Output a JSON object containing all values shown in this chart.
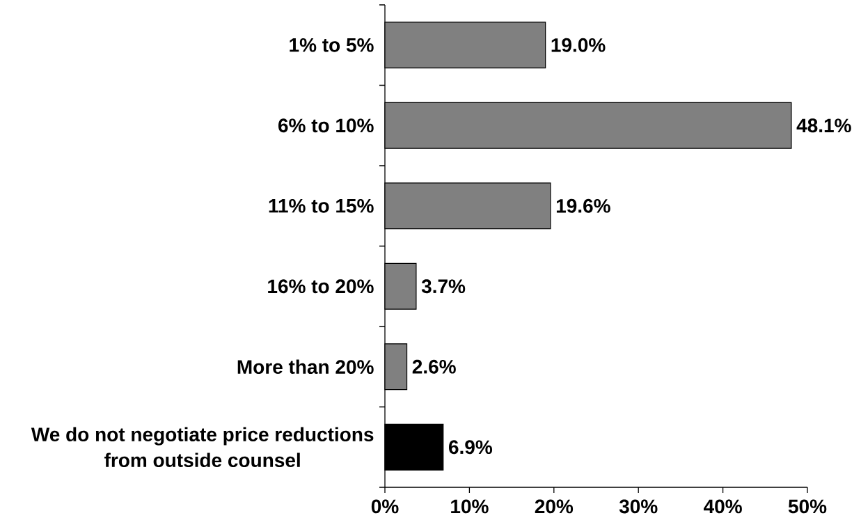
{
  "chart_data": {
    "type": "bar",
    "orientation": "horizontal",
    "categories": [
      "1% to 5%",
      "6% to 10%",
      "11% to 15%",
      "16% to 20%",
      "More than 20%",
      "We do not negotiate price reductions from outside counsel"
    ],
    "values": [
      19.0,
      48.1,
      19.6,
      3.7,
      2.6,
      6.9
    ],
    "colors": [
      "#808080",
      "#808080",
      "#808080",
      "#808080",
      "#808080",
      "#000000"
    ],
    "value_labels": [
      "19.0%",
      "48.1%",
      "19.6%",
      "3.7%",
      "2.6%",
      "6.9%"
    ],
    "xlim": [
      0,
      50
    ],
    "xticks": [
      {
        "value": 0,
        "label": "0%"
      },
      {
        "value": 10,
        "label": "10%"
      },
      {
        "value": 20,
        "label": "20%"
      },
      {
        "value": 30,
        "label": "30%"
      },
      {
        "value": 40,
        "label": "40%"
      },
      {
        "value": 50,
        "label": "50%"
      }
    ]
  }
}
